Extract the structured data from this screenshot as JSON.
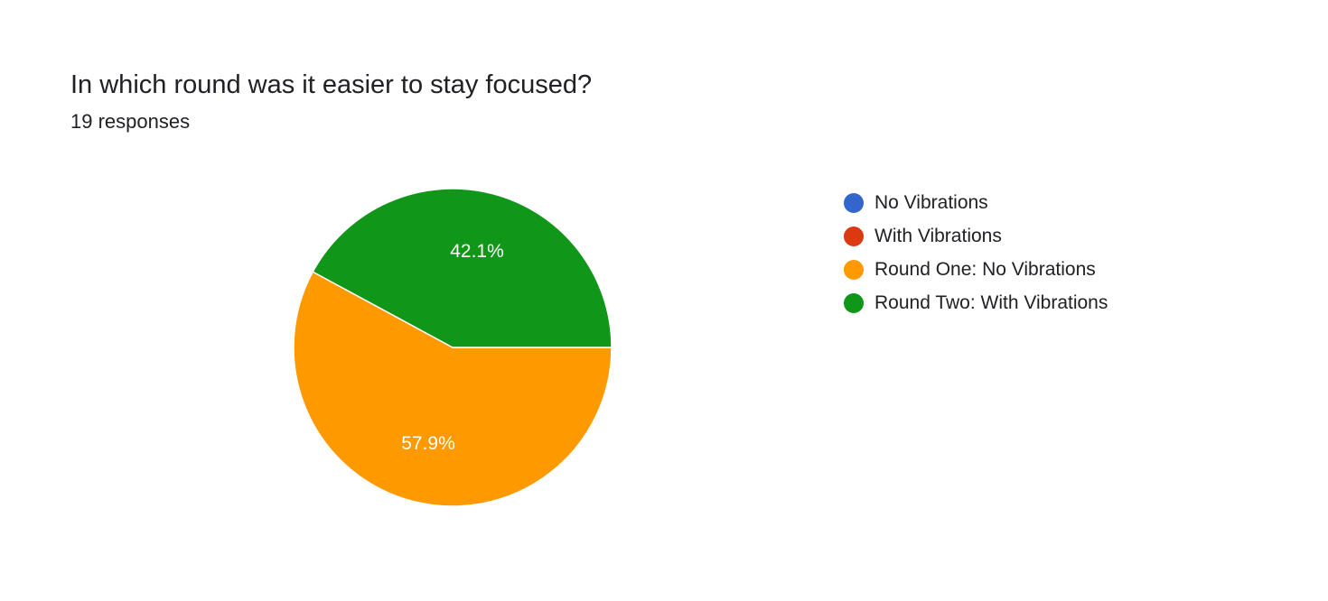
{
  "header": {
    "title": "In which round was it easier to stay focused?",
    "subtitle": "19 responses"
  },
  "chart_data": {
    "type": "pie",
    "title": "In which round was it easier to stay focused?",
    "total_responses": 19,
    "legend_position": "right",
    "categories": [
      "No Vibrations",
      "With Vibrations",
      "Round One: No Vibrations",
      "Round Two: With Vibrations"
    ],
    "values": [
      0,
      0,
      57.9,
      42.1
    ],
    "labels": [
      "",
      "",
      "57.9%",
      "42.1%"
    ],
    "colors": [
      "#3366cc",
      "#dc3912",
      "#ff9900",
      "#109618"
    ]
  }
}
